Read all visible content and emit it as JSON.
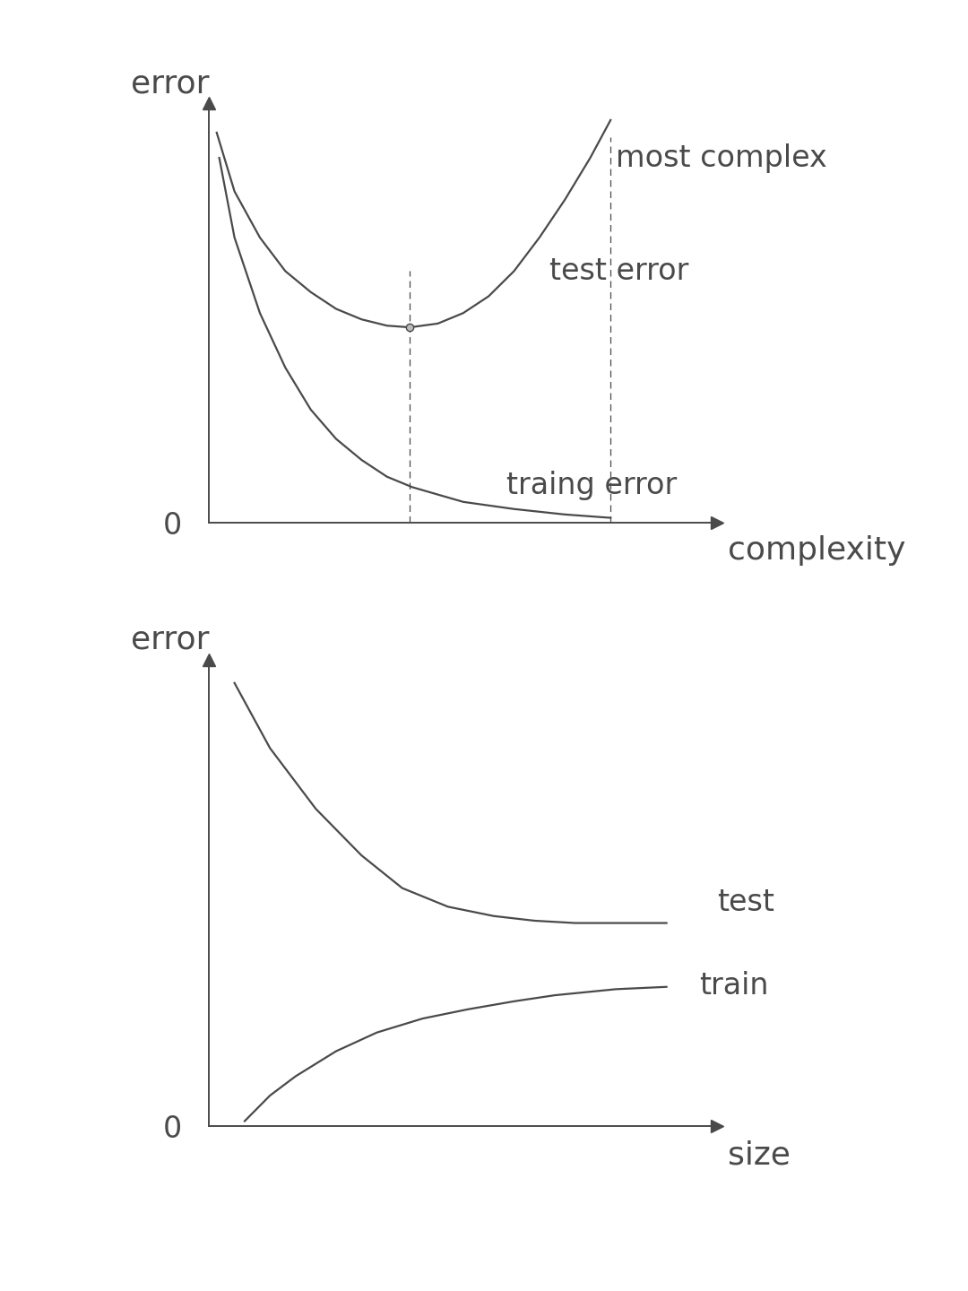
{
  "chart_data": [
    {
      "type": "line",
      "x_label": "complexity",
      "y_label": "error",
      "xlim": [
        0,
        10
      ],
      "ylim": [
        0,
        10
      ],
      "xticks": [],
      "yticks": [
        0
      ],
      "tick_labels": "y",
      "color": "#4a4a4a",
      "series": [
        {
          "name": "test error",
          "color": "#4a4a4a",
          "line_style": "solid",
          "x": [
            0.15,
            0.5,
            1.0,
            1.5,
            2.0,
            2.5,
            3.0,
            3.5,
            3.95,
            4.5,
            5.0,
            5.5,
            6.0,
            6.5,
            7.0,
            7.5,
            7.9
          ],
          "values": [
            9.3,
            7.9,
            6.8,
            6.0,
            5.5,
            5.1,
            4.85,
            4.7,
            4.66,
            4.75,
            5.0,
            5.4,
            6.0,
            6.8,
            7.7,
            8.7,
            9.6
          ]
        },
        {
          "name": "traing error",
          "color": "#4a4a4a",
          "line_style": "solid",
          "x": [
            0.2,
            0.5,
            1.0,
            1.5,
            2.0,
            2.5,
            3.0,
            3.5,
            4.0,
            5.0,
            6.0,
            7.0,
            7.9
          ],
          "values": [
            8.7,
            6.8,
            5.0,
            3.7,
            2.7,
            2.0,
            1.5,
            1.1,
            0.85,
            0.5,
            0.33,
            0.2,
            0.12
          ]
        }
      ],
      "reference_lines": [
        {
          "x": 3.95
        },
        {
          "x": 7.9,
          "label": "most complex"
        }
      ],
      "highlight": {
        "x": 3.95,
        "y": 4.66
      }
    },
    {
      "type": "line",
      "x_label": "size",
      "y_label": "error",
      "xlim": [
        0,
        10
      ],
      "ylim": [
        0,
        10
      ],
      "xticks": [],
      "yticks": [
        0
      ],
      "tick_labels": "y",
      "color": "#4a4a4a",
      "series": [
        {
          "name": "test",
          "color": "#4a4a4a",
          "line_style": "solid",
          "x": [
            0.5,
            1.2,
            2.1,
            3.0,
            3.8,
            4.7,
            5.6,
            6.4,
            7.2,
            8.1,
            9.0
          ],
          "values": [
            9.5,
            8.1,
            6.8,
            5.8,
            5.1,
            4.7,
            4.5,
            4.4,
            4.35,
            4.35,
            4.35
          ]
        },
        {
          "name": "train",
          "color": "#4a4a4a",
          "line_style": "solid",
          "x": [
            0.7,
            1.2,
            1.7,
            2.5,
            3.3,
            4.2,
            5.1,
            6.0,
            6.8,
            8.0,
            9.0
          ],
          "values": [
            0.1,
            0.65,
            1.06,
            1.6,
            2.0,
            2.3,
            2.5,
            2.67,
            2.8,
            2.93,
            2.98
          ]
        }
      ]
    }
  ]
}
